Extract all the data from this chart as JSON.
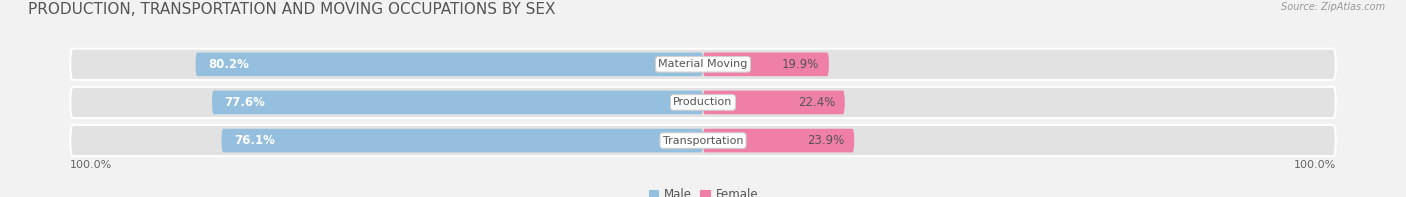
{
  "title": "PRODUCTION, TRANSPORTATION AND MOVING OCCUPATIONS BY SEX",
  "source": "Source: ZipAtlas.com",
  "categories": [
    "Material Moving",
    "Production",
    "Transportation"
  ],
  "male_values": [
    80.2,
    77.6,
    76.1
  ],
  "female_values": [
    19.9,
    22.4,
    23.9
  ],
  "male_color": "#94bfde",
  "female_color": "#f07fa8",
  "male_label": "Male",
  "female_label": "Female",
  "bg_color": "#f2f2f2",
  "bar_bg_color": "#e0e0e0",
  "title_fontsize": 11,
  "label_fontsize": 8.5,
  "cat_fontsize": 8.0,
  "pct_fontsize": 8.5,
  "axis_label_left": "100.0%",
  "axis_label_right": "100.0%",
  "figsize": [
    14.06,
    1.97
  ],
  "dpi": 100
}
